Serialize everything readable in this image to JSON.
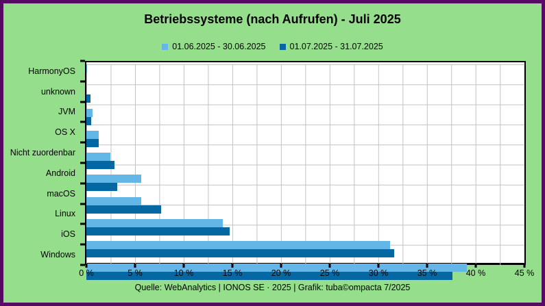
{
  "title": "Betriebssysteme (nach Aufrufen) - Juli 2025",
  "footer": "Quelle: WebAnalytics | IONOS SE · 2025 | Grafik: tuba©ompacta 7/2025",
  "colors": {
    "background": "#95de8b",
    "frame_border": "#570a63",
    "plot_background": "#ffffff",
    "grid": "#c2c2c2",
    "axis": "#000000",
    "series_june": "#63b7e6",
    "series_july": "#0568a2"
  },
  "chart_data": {
    "type": "bar",
    "orientation": "horizontal",
    "title": "Betriebssysteme (nach Aufrufen) - Juli 2025",
    "categories": [
      "HarmonyOS",
      "unknown",
      "JVM",
      "OS X",
      "Nicht zuordenbar",
      "Android",
      "macOS",
      "Linux",
      "iOS",
      "Windows"
    ],
    "series": [
      {
        "name": "01.06.2025 - 30.06.2025",
        "color": "#63b7e6",
        "values": [
          0.1,
          0,
          0.6,
          1.3,
          2.5,
          5.6,
          5.6,
          14.0,
          31.2,
          39.1
        ]
      },
      {
        "name": "01.07.2025 - 31.07.2025",
        "color": "#0568a2",
        "values": [
          0,
          0.4,
          0.5,
          1.25,
          2.9,
          3.2,
          7.7,
          14.7,
          31.6,
          37.6
        ]
      }
    ],
    "value_unit": "%",
    "xlim": [
      0,
      45
    ],
    "major_tick_step": 5,
    "minor_grid_step": 2.5,
    "x_ticks": [
      "0 %",
      "5 %",
      "10 %",
      "15 %",
      "20 %",
      "25 %",
      "30 %",
      "35 %",
      "40 %",
      "45 %"
    ],
    "grid": true,
    "legend_position": "top"
  }
}
